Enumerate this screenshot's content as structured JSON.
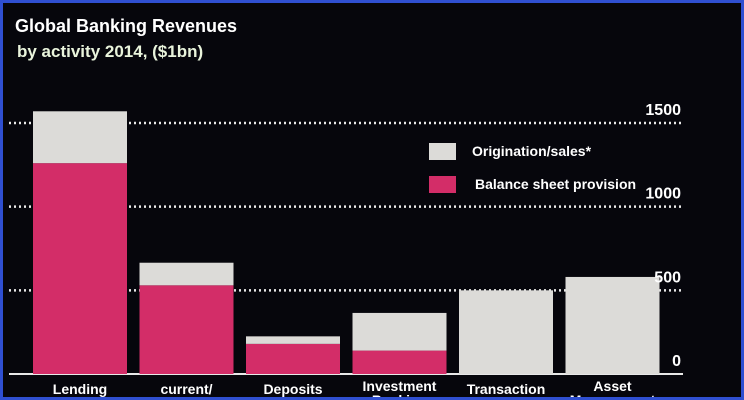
{
  "title": "Global Banking Revenues",
  "subtitle": "by activity 2014, ($1bn)",
  "colors": {
    "background": "#06060c",
    "border": "#2f4fd1",
    "balance_sheet": "#d32d68",
    "origination": "#dcdbd8",
    "text": "#ffffff",
    "grid": "#e8e8e8"
  },
  "chart_data": {
    "type": "bar",
    "stacked": true,
    "categories": [
      "Lending",
      "current/",
      "Deposits",
      "Investment",
      "Transaction",
      "Asset"
    ],
    "category_second_lines": [
      "",
      "",
      "",
      "Banking",
      "",
      "Management"
    ],
    "series": [
      {
        "name": "Balance sheet provision",
        "color": "#d32d68",
        "values": [
          1260,
          530,
          180,
          140,
          0,
          0
        ]
      },
      {
        "name": "Origination/sales*",
        "color": "#dcdbd8",
        "values": [
          310,
          135,
          45,
          225,
          500,
          580
        ]
      }
    ],
    "ylim": [
      0,
      1500
    ],
    "yticks": [
      0,
      500,
      1000,
      1500
    ],
    "grid": true,
    "legend_position": "top-right",
    "xlabel": "",
    "ylabel": ""
  }
}
